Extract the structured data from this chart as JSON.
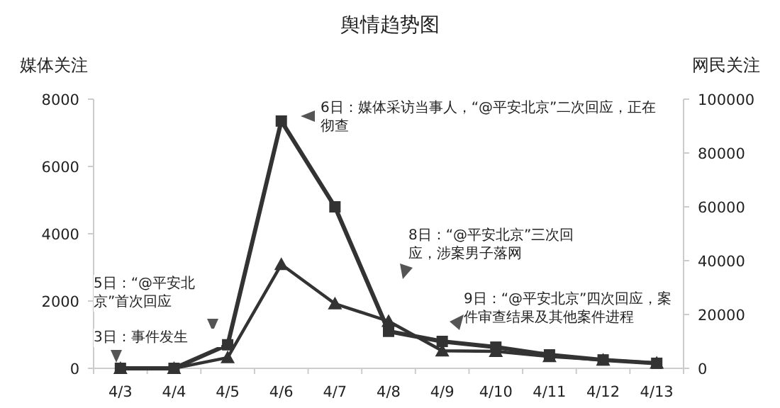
{
  "chart_data": {
    "type": "line",
    "title": "舆情趋势图",
    "ylabel": "媒体关注",
    "y2label": "网民关注",
    "categories": [
      "4/3",
      "4/4",
      "4/5",
      "4/6",
      "4/7",
      "4/8",
      "4/9",
      "4/10",
      "4/11",
      "4/12",
      "4/13"
    ],
    "series": [
      {
        "color": "#333333",
        "marker": "square",
        "values": [
          0,
          0,
          700,
          7350,
          4800,
          1100,
          800,
          630,
          400,
          250,
          150
        ]
      },
      {
        "color": "#333333",
        "marker": "triangle",
        "axis": "y2",
        "values": [
          0,
          0,
          4000,
          38600,
          24000,
          17500,
          6500,
          6300,
          4400,
          3100,
          2000
        ]
      }
    ],
    "ylim": [
      0,
      8000
    ],
    "yticks": [
      0,
      2000,
      4000,
      6000,
      8000
    ],
    "y2lim": [
      0,
      100000
    ],
    "y2ticks": [
      0,
      20000,
      40000,
      60000,
      80000,
      100000
    ],
    "grid": false,
    "line_style": "solid",
    "annotations": [
      "3日：事件发生",
      "5日：“@平安北京”首次回应",
      "6日：媒体采访当事人，“@平安北京”二次回应，正在彻查",
      "8日：“@平安北京”三次回应，涉案男子落网",
      "9日：“@平安北京”四次回应，案件审查结果及其他案件进程"
    ]
  }
}
